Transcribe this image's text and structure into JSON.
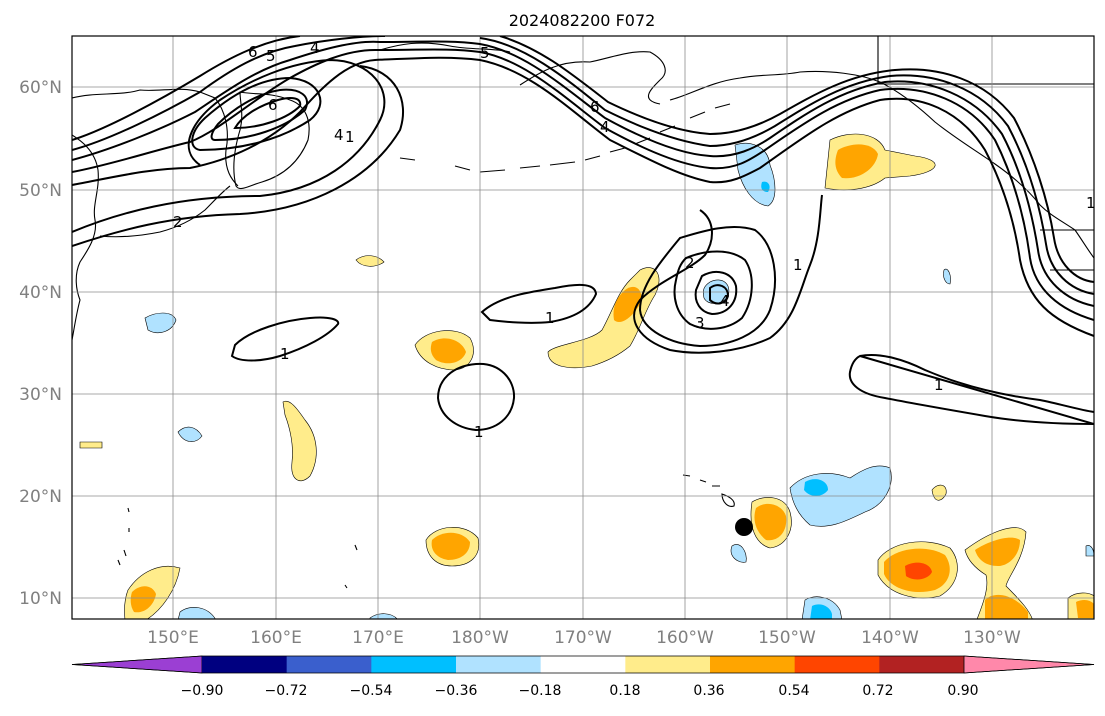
{
  "title": "2024082200 F072",
  "map": {
    "lat_labels": [
      "60°N",
      "50°N",
      "40°N",
      "30°N",
      "20°N",
      "10°N"
    ],
    "lon_labels": [
      "150°E",
      "160°E",
      "170°E",
      "180°W",
      "170°W",
      "160°W",
      "150°W",
      "140°W",
      "130°W"
    ],
    "contour_labels": [
      "6",
      "5",
      "4",
      "6",
      "4",
      "5",
      "6",
      "4",
      "1",
      "2",
      "2",
      "1",
      "3",
      "4",
      "1",
      "1",
      "1",
      "1",
      "1"
    ],
    "colors": {
      "contour": "#000000",
      "grid": "#8c8c8c",
      "coast": "#000000",
      "marker": "#000000"
    }
  },
  "colorbar": {
    "ticks": [
      "−0.90",
      "−0.72",
      "−0.54",
      "−0.36",
      "−0.18",
      "0.18",
      "0.36",
      "0.54",
      "0.72",
      "0.90"
    ],
    "colors": [
      "#9b3fd3",
      "#000080",
      "#3a5fcd",
      "#00bfff",
      "#b0e2ff",
      "#ffffff",
      "#ffec8b",
      "#ffa500",
      "#ff4500",
      "#b22222",
      "#ff88aa"
    ]
  }
}
